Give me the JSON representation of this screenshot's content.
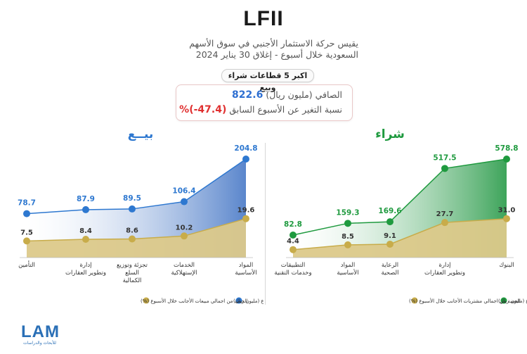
{
  "header": {
    "title": "LFII",
    "subtitle_line1": "يقيس حركة الاستثمار الأجنبي في سوق الأسهم",
    "subtitle_line2": "السعودية خلال أسبوع - إغلاق 30 يناير 2024",
    "pill": "اكبر 5 قطاعات شراء وبيع",
    "net_label": "الصافي (مليون ريال)",
    "net_value": "822.6",
    "change_label": "نسبة التغير عن الأسبوع السابق",
    "change_value": "(47.4-)%"
  },
  "colors": {
    "buy_total": "#1f9a3f",
    "buy_fill_dark": "#3da45a",
    "sell_total": "#2e78d0",
    "sell_fill_dark": "#5a86cc",
    "share": "#c8ac4a",
    "share_fill": "#dcc98a"
  },
  "logo": {
    "text": "LAM",
    "tagline": "للأبحاث والدراسات"
  },
  "chart_data": [
    {
      "type": "area",
      "title": "شراء",
      "categories": [
        "التطبيقات وخدمات التقنية",
        "المواد الأساسية",
        "الرعاية الصحية",
        "إدارة وتطوير العقارات",
        "البنوك"
      ],
      "series": [
        {
          "name": "اجمالي المشتريات للقطاع (مليون ريال)",
          "values": [
            82.8,
            159.3,
            169.6,
            517.5,
            578.8
          ]
        },
        {
          "name": "الحصة من اجمالي مشتريات الأجانب خلال الأسبوع (%)",
          "values": [
            4.4,
            8.5,
            9.1,
            27.7,
            31.0
          ]
        }
      ],
      "labels_total": [
        "82.8",
        "159.3",
        "169.6",
        "517.5",
        "578.8"
      ],
      "labels_share": [
        "4.4",
        "8.5",
        "9.1",
        "27.7",
        "31.0"
      ],
      "legend": "bottom"
    },
    {
      "type": "area",
      "title": "بيــع",
      "categories": [
        "التأمين",
        "إدارة وتطوير العقارات",
        "تجزئة وتوزيع السلع الكمالية",
        "الخدمات الإستهلاكية",
        "المواد الأساسية"
      ],
      "series": [
        {
          "name": "اجمالي المبيعات للقطاع (مليون ريال)",
          "values": [
            78.7,
            87.9,
            89.5,
            106.4,
            204.8
          ]
        },
        {
          "name": "الحصة من اجمالي مبيعات الأجانب خلال الأسبوع (%)",
          "values": [
            7.5,
            8.4,
            8.6,
            10.2,
            19.6
          ]
        }
      ],
      "labels_total": [
        "78.7",
        "87.9",
        "89.5",
        "106.4",
        "204.8"
      ],
      "labels_share": [
        "7.5",
        "8.4",
        "8.6",
        "10.2",
        "19.6"
      ],
      "legend": "bottom"
    }
  ]
}
